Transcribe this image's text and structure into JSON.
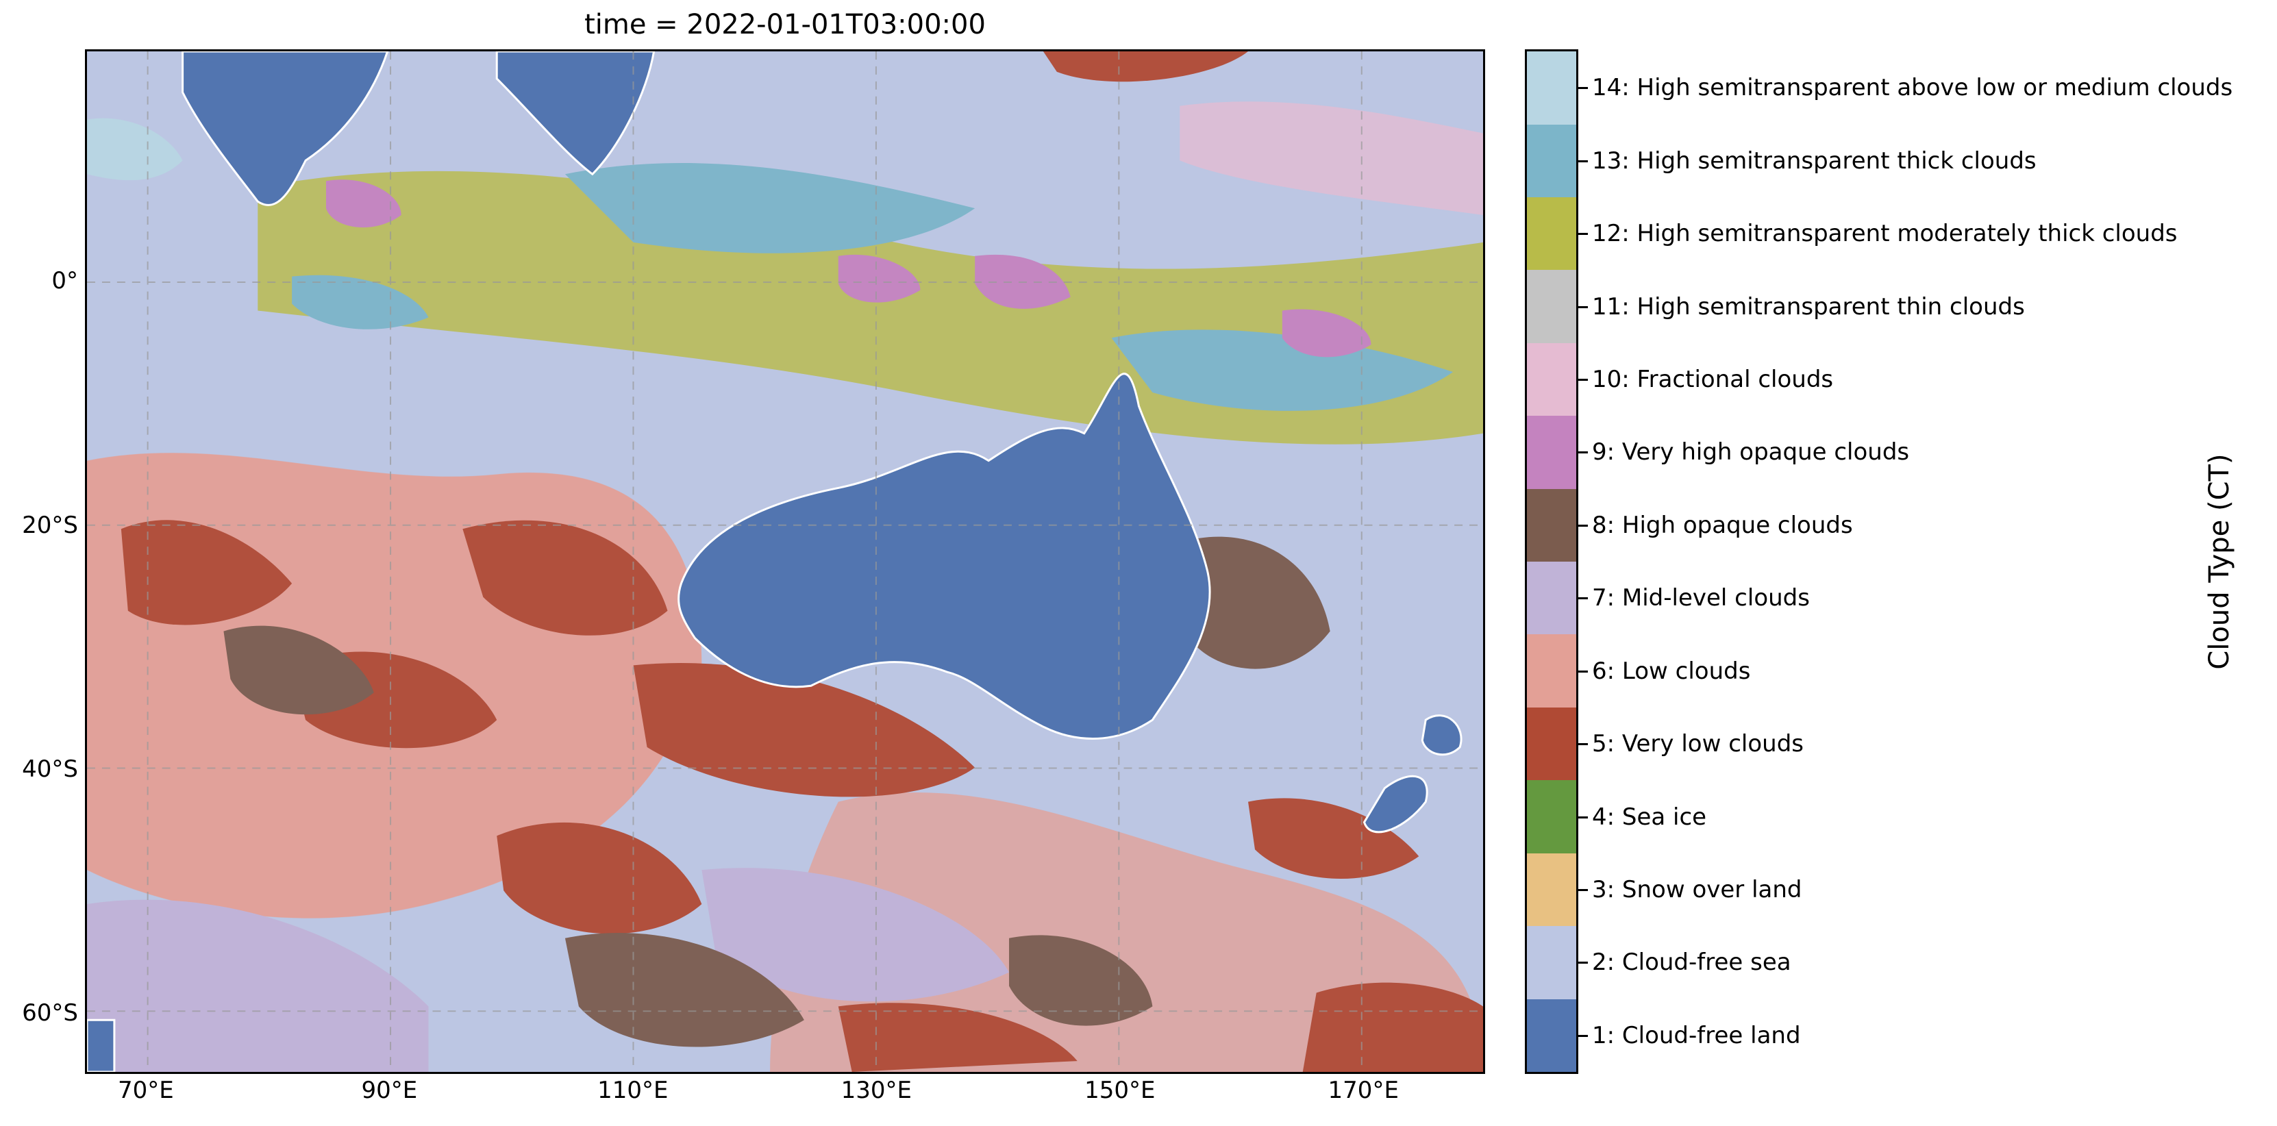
{
  "title": "time = 2022-01-01T03:00:00",
  "map": {
    "lat_ticks": [
      "0°",
      "20°S",
      "40°S",
      "60°S"
    ],
    "lon_ticks": [
      "70°E",
      "90°E",
      "110°E",
      "130°E",
      "150°E",
      "170°E"
    ],
    "lon_range": [
      65,
      180
    ],
    "lat_range": [
      -65,
      19
    ],
    "lat_tick_values": [
      0,
      -20,
      -40,
      -60
    ],
    "lon_tick_values": [
      70,
      90,
      110,
      130,
      150,
      170
    ],
    "gridlines": true,
    "coastline_color": "#ffffff"
  },
  "colorbar": {
    "label": "Cloud Type (CT)",
    "classes": [
      {
        "label": "1: Cloud-free land",
        "color": "#5275b0"
      },
      {
        "label": "2: Cloud-free sea",
        "color": "#bcc6e3"
      },
      {
        "label": "3: Snow over land",
        "color": "#e8c182"
      },
      {
        "label": "4: Sea ice",
        "color": "#64993f"
      },
      {
        "label": "5: Very low clouds",
        "color": "#b04a34"
      },
      {
        "label": "6: Low clouds",
        "color": "#e3a096"
      },
      {
        "label": "7: Mid-level clouds",
        "color": "#c0b3d7"
      },
      {
        "label": "8: High opaque clouds",
        "color": "#7b5c4e"
      },
      {
        "label": "9: Very high opaque clouds",
        "color": "#c483bf"
      },
      {
        "label": "10: Fractional clouds",
        "color": "#e5bbd2"
      },
      {
        "label": "11: High semitransparent thin clouds",
        "color": "#c4c4c4"
      },
      {
        "label": "12: High semitransparent moderately thick clouds",
        "color": "#b8bb49"
      },
      {
        "label": "13: High semitransparent thick clouds",
        "color": "#7cb5c9"
      },
      {
        "label": "14: High semitransparent above low or medium clouds",
        "color": "#b8d6e3"
      }
    ]
  }
}
